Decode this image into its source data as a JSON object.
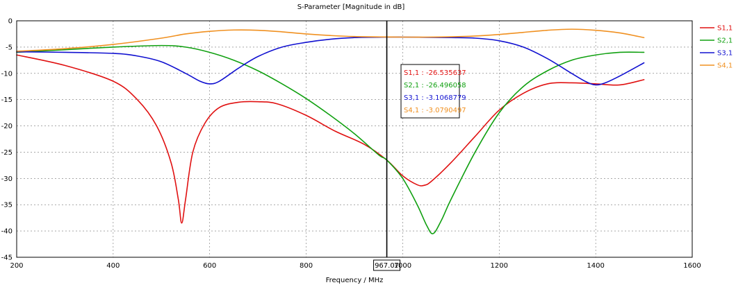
{
  "chart_data": {
    "type": "line",
    "title": "S-Parameter [Magnitude in dB]",
    "xlabel": "Frequency / MHz",
    "ylabel": "",
    "xlim": [
      200,
      1600
    ],
    "ylim": [
      -45,
      0
    ],
    "xticks": [
      "200",
      "400",
      "600",
      "800",
      "1000",
      "1200",
      "1400",
      "1600"
    ],
    "yticks": [
      "0",
      "-5",
      "-10",
      "-15",
      "-20",
      "-25",
      "-30",
      "-35",
      "-40",
      "-45"
    ],
    "grid": true,
    "legend_position": "right",
    "series": [
      {
        "name": "S1,1",
        "color": "#e01010",
        "x": [
          200,
          300,
          400,
          450,
          490,
          520,
          535,
          542,
          550,
          565,
          590,
          620,
          660,
          700,
          740,
          800,
          860,
          920,
          967,
          1000,
          1030,
          1045,
          1060,
          1100,
          1150,
          1200,
          1250,
          1300,
          1350,
          1400,
          1450,
          1500
        ],
        "y": [
          -6.5,
          -8.5,
          -11.5,
          -15,
          -20,
          -27,
          -34,
          -38.5,
          -34,
          -25,
          -19.5,
          -16.5,
          -15.5,
          -15.4,
          -15.8,
          -18,
          -21,
          -23.5,
          -26.5,
          -29.5,
          -31.2,
          -31.3,
          -30.5,
          -27,
          -22,
          -17,
          -13.8,
          -12,
          -11.8,
          -12,
          -12.2,
          -11.2
        ]
      },
      {
        "name": "S2,1",
        "color": "#10a010",
        "x": [
          200,
          300,
          400,
          500,
          550,
          600,
          650,
          700,
          750,
          800,
          850,
          900,
          950,
          967,
          1000,
          1030,
          1050,
          1063,
          1080,
          1100,
          1150,
          1200,
          1250,
          1300,
          1350,
          1400,
          1450,
          1500
        ],
        "y": [
          -6,
          -5.5,
          -5,
          -4.7,
          -5,
          -6,
          -7.5,
          -9.5,
          -12,
          -14.8,
          -18,
          -21.5,
          -25.5,
          -26.5,
          -30,
          -35,
          -39,
          -40.5,
          -38,
          -34,
          -25,
          -17.5,
          -12.5,
          -9.5,
          -7.5,
          -6.5,
          -6,
          -6
        ]
      },
      {
        "name": "S3,1",
        "color": "#1010d0",
        "x": [
          200,
          300,
          400,
          450,
          500,
          550,
          580,
          600,
          620,
          660,
          700,
          750,
          800,
          850,
          900,
          967,
          1000,
          1050,
          1100,
          1150,
          1200,
          1250,
          1300,
          1350,
          1380,
          1400,
          1420,
          1450,
          1500
        ],
        "y": [
          -5.9,
          -6,
          -6.2,
          -6.7,
          -7.8,
          -10,
          -11.5,
          -12,
          -11.5,
          -9,
          -6.8,
          -5,
          -4.1,
          -3.5,
          -3.2,
          -3.1,
          -3.1,
          -3.15,
          -3.2,
          -3.3,
          -3.8,
          -5,
          -7.2,
          -10,
          -11.6,
          -12.2,
          -11.8,
          -10.5,
          -8
        ]
      },
      {
        "name": "S4,1",
        "color": "#f09020",
        "x": [
          200,
          300,
          400,
          500,
          550,
          600,
          650,
          700,
          750,
          800,
          850,
          900,
          967,
          1000,
          1050,
          1100,
          1150,
          1200,
          1250,
          1300,
          1350,
          1400,
          1450,
          1500
        ],
        "y": [
          -5.8,
          -5.3,
          -4.5,
          -3.3,
          -2.5,
          -2,
          -1.75,
          -1.8,
          -2.1,
          -2.5,
          -2.8,
          -3,
          -3.08,
          -3.1,
          -3.1,
          -3.05,
          -2.9,
          -2.6,
          -2.2,
          -1.8,
          -1.6,
          -1.8,
          -2.3,
          -3.2
        ]
      }
    ],
    "marker": {
      "x": 967.07,
      "x_label": "967.07",
      "readouts": [
        {
          "text": "S1,1 : -26.535637",
          "color": "#e01010"
        },
        {
          "text": "S2,1 : -26.496058",
          "color": "#10a010"
        },
        {
          "text": "S3,1 : -3.1068779",
          "color": "#1010d0"
        },
        {
          "text": "S4,1 : -3.0790497",
          "color": "#f09020"
        }
      ]
    }
  }
}
